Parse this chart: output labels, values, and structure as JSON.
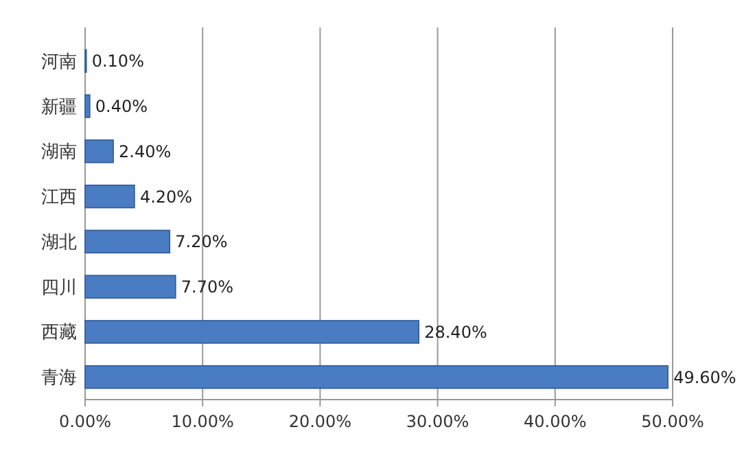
{
  "chart_data": {
    "type": "bar",
    "orientation": "horizontal",
    "categories": [
      "河南",
      "新疆",
      "湖南",
      "江西",
      "湖北",
      "四川",
      "西藏",
      "青海"
    ],
    "values": [
      0.1,
      0.4,
      2.4,
      4.2,
      7.2,
      7.7,
      28.4,
      49.6
    ],
    "value_labels": [
      "0.10%",
      "0.40%",
      "2.40%",
      "4.20%",
      "7.20%",
      "7.70%",
      "28.40%",
      "49.60%"
    ],
    "color": "#4a7cc4",
    "xlim": [
      0,
      50
    ],
    "xticks": [
      {
        "value": 0,
        "label": "0.00%"
      },
      {
        "value": 10,
        "label": "10.00%"
      },
      {
        "value": 20,
        "label": "20.00%"
      },
      {
        "value": 30,
        "label": "30.00%"
      },
      {
        "value": 40,
        "label": "40.00%"
      },
      {
        "value": 50,
        "label": "50.00%"
      }
    ],
    "grid": "x"
  }
}
